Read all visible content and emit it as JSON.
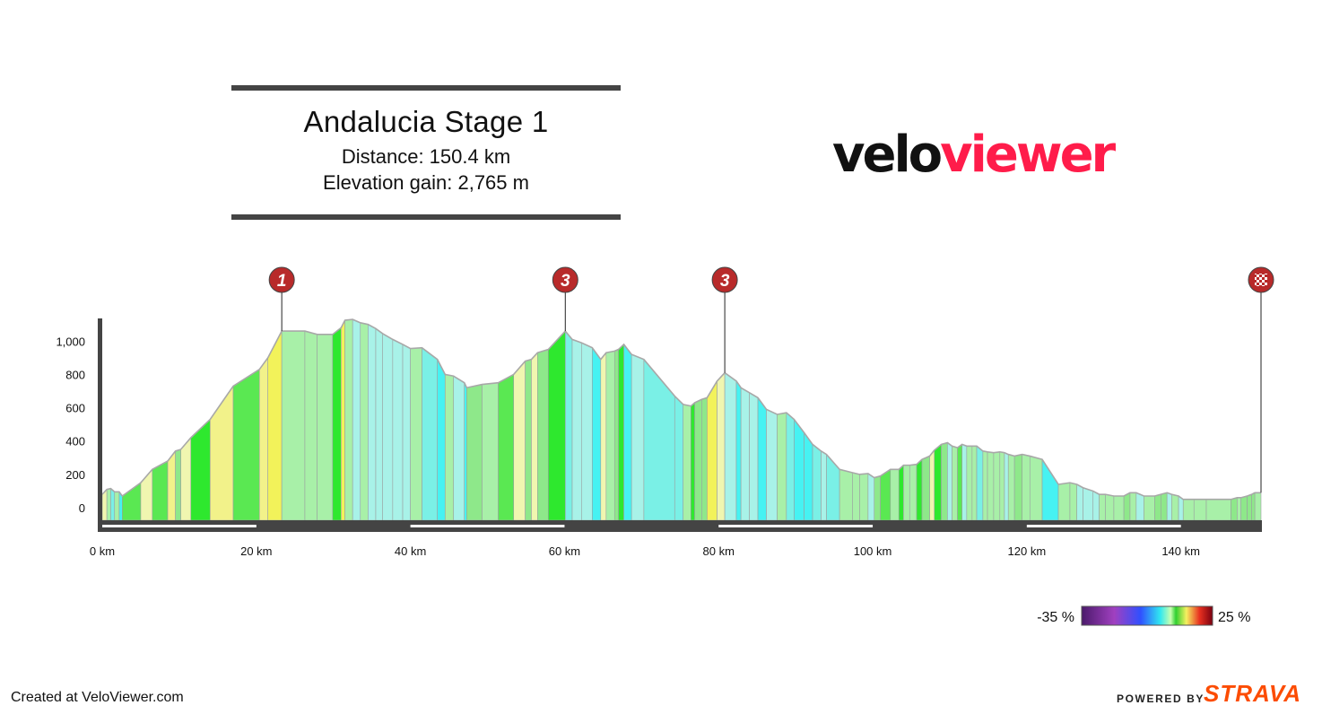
{
  "header": {
    "title": "Andalucia Stage 1",
    "distance": "Distance: 150.4 km",
    "elevation_gain": "Elevation gain: 2,765 m"
  },
  "logo": {
    "part1": "velo",
    "part2": "viewer",
    "color1": "#111111",
    "color2": "#ff1c4a"
  },
  "footer": {
    "created": "Created at VeloViewer.com",
    "powered_by": "POWERED BY",
    "brand": "STRAVA",
    "brand_color": "#fc4c02"
  },
  "legend": {
    "min_label": "-35 %",
    "max_label": "25 %"
  },
  "chart_data": {
    "type": "area",
    "xlabel": "",
    "ylabel": "",
    "xlim": [
      0,
      150.4
    ],
    "ylim": [
      -50,
      1200
    ],
    "x_ticks": [
      0,
      20,
      40,
      60,
      80,
      100,
      120,
      140
    ],
    "x_tick_labels": [
      "0 km",
      "20 km",
      "40 km",
      "60 km",
      "80 km",
      "100 km",
      "120 km",
      "140 km"
    ],
    "y_ticks": [
      0,
      200,
      400,
      600,
      800,
      1000
    ],
    "y_tick_labels": [
      "0",
      "200",
      "400",
      "600",
      "800",
      "1,000"
    ],
    "grid": false,
    "gradient_color_scale": {
      "min": -35,
      "max": 25,
      "unit": "%"
    },
    "series": [
      {
        "values": [
          [
            0,
            80
          ],
          [
            0.6,
            110
          ],
          [
            1.1,
            115
          ],
          [
            1.6,
            95
          ],
          [
            2.2,
            95
          ],
          [
            2.6,
            70
          ],
          [
            5,
            150
          ],
          [
            6.5,
            230
          ],
          [
            8.5,
            280
          ],
          [
            9.5,
            340
          ],
          [
            10.2,
            350
          ],
          [
            11.5,
            420
          ],
          [
            14,
            530
          ],
          [
            17,
            730
          ],
          [
            20.4,
            830
          ],
          [
            21.5,
            900
          ],
          [
            23.3,
            1060
          ],
          [
            26.3,
            1060
          ],
          [
            27.9,
            1040
          ],
          [
            29.9,
            1040
          ],
          [
            31,
            1080
          ],
          [
            31.5,
            1125
          ],
          [
            32.5,
            1130
          ],
          [
            33.5,
            1110
          ],
          [
            34.5,
            1100
          ],
          [
            35.5,
            1075
          ],
          [
            36.4,
            1045
          ],
          [
            37.7,
            1010
          ],
          [
            39,
            980
          ],
          [
            40,
            955
          ],
          [
            41.5,
            960
          ],
          [
            43.5,
            890
          ],
          [
            44.5,
            800
          ],
          [
            45.6,
            790
          ],
          [
            47,
            750
          ],
          [
            47.3,
            720
          ],
          [
            49.3,
            740
          ],
          [
            51.4,
            750
          ],
          [
            53.4,
            800
          ],
          [
            54.9,
            880
          ],
          [
            55.7,
            890
          ],
          [
            56.5,
            930
          ],
          [
            57.9,
            950
          ],
          [
            60.1,
            1060
          ],
          [
            61,
            1010
          ],
          [
            62.2,
            990
          ],
          [
            63.6,
            960
          ],
          [
            64.7,
            890
          ],
          [
            65.4,
            930
          ],
          [
            66.5,
            940
          ],
          [
            67,
            950
          ],
          [
            67.7,
            980
          ],
          [
            68.7,
            920
          ],
          [
            70.3,
            890
          ],
          [
            74.3,
            670
          ],
          [
            75.4,
            620
          ],
          [
            76.4,
            610
          ],
          [
            76.9,
            630
          ],
          [
            77.8,
            650
          ],
          [
            78.5,
            660
          ],
          [
            79.8,
            760
          ],
          [
            80.8,
            810
          ],
          [
            82.3,
            760
          ],
          [
            82.9,
            720
          ],
          [
            84,
            690
          ],
          [
            85.1,
            660
          ],
          [
            86.2,
            590
          ],
          [
            87.6,
            560
          ],
          [
            88.8,
            570
          ],
          [
            89.8,
            530
          ],
          [
            91.1,
            450
          ],
          [
            92.2,
            380
          ],
          [
            93.3,
            340
          ],
          [
            94,
            320
          ],
          [
            95.7,
            230
          ],
          [
            97.4,
            210
          ],
          [
            98.3,
            200
          ],
          [
            99.4,
            205
          ],
          [
            100.2,
            180
          ],
          [
            101,
            190
          ],
          [
            102.3,
            230
          ],
          [
            103.4,
            230
          ],
          [
            104,
            255
          ],
          [
            104.8,
            255
          ],
          [
            105.7,
            260
          ],
          [
            106.4,
            290
          ],
          [
            107.4,
            310
          ],
          [
            108,
            345
          ],
          [
            108.9,
            380
          ],
          [
            109.7,
            390
          ],
          [
            110.3,
            370
          ],
          [
            111,
            360
          ],
          [
            111.6,
            380
          ],
          [
            112.2,
            370
          ],
          [
            112.9,
            370
          ],
          [
            113.5,
            370
          ],
          [
            114.3,
            340
          ],
          [
            114.9,
            335
          ],
          [
            115.7,
            330
          ],
          [
            116.5,
            335
          ],
          [
            117.1,
            330
          ],
          [
            117.6,
            320
          ],
          [
            118.4,
            310
          ],
          [
            119.4,
            320
          ],
          [
            120.4,
            310
          ],
          [
            122,
            290
          ],
          [
            124.1,
            140
          ],
          [
            125.6,
            150
          ],
          [
            126.5,
            140
          ],
          [
            127.3,
            120
          ],
          [
            128.6,
            100
          ],
          [
            129.4,
            80
          ],
          [
            130.2,
            80
          ],
          [
            131.3,
            70
          ],
          [
            132.6,
            70
          ],
          [
            133.4,
            90
          ],
          [
            134.2,
            90
          ],
          [
            135.2,
            70
          ],
          [
            136.6,
            70
          ],
          [
            137.4,
            80
          ],
          [
            138.2,
            90
          ],
          [
            138.8,
            80
          ],
          [
            139.7,
            70
          ],
          [
            140.3,
            50
          ],
          [
            141.7,
            50
          ],
          [
            143.3,
            50
          ],
          [
            146.5,
            50
          ],
          [
            147.3,
            60
          ],
          [
            147.8,
            60
          ],
          [
            148.6,
            70
          ],
          [
            149.2,
            80
          ],
          [
            149.6,
            90
          ],
          [
            150.4,
            90
          ]
        ]
      }
    ],
    "climbs": [
      {
        "label": "1",
        "x": 23.3
      },
      {
        "label": "3",
        "x": 60.1
      },
      {
        "label": "3",
        "x": 80.8
      },
      {
        "label": "finish",
        "x": 150.4
      }
    ]
  }
}
